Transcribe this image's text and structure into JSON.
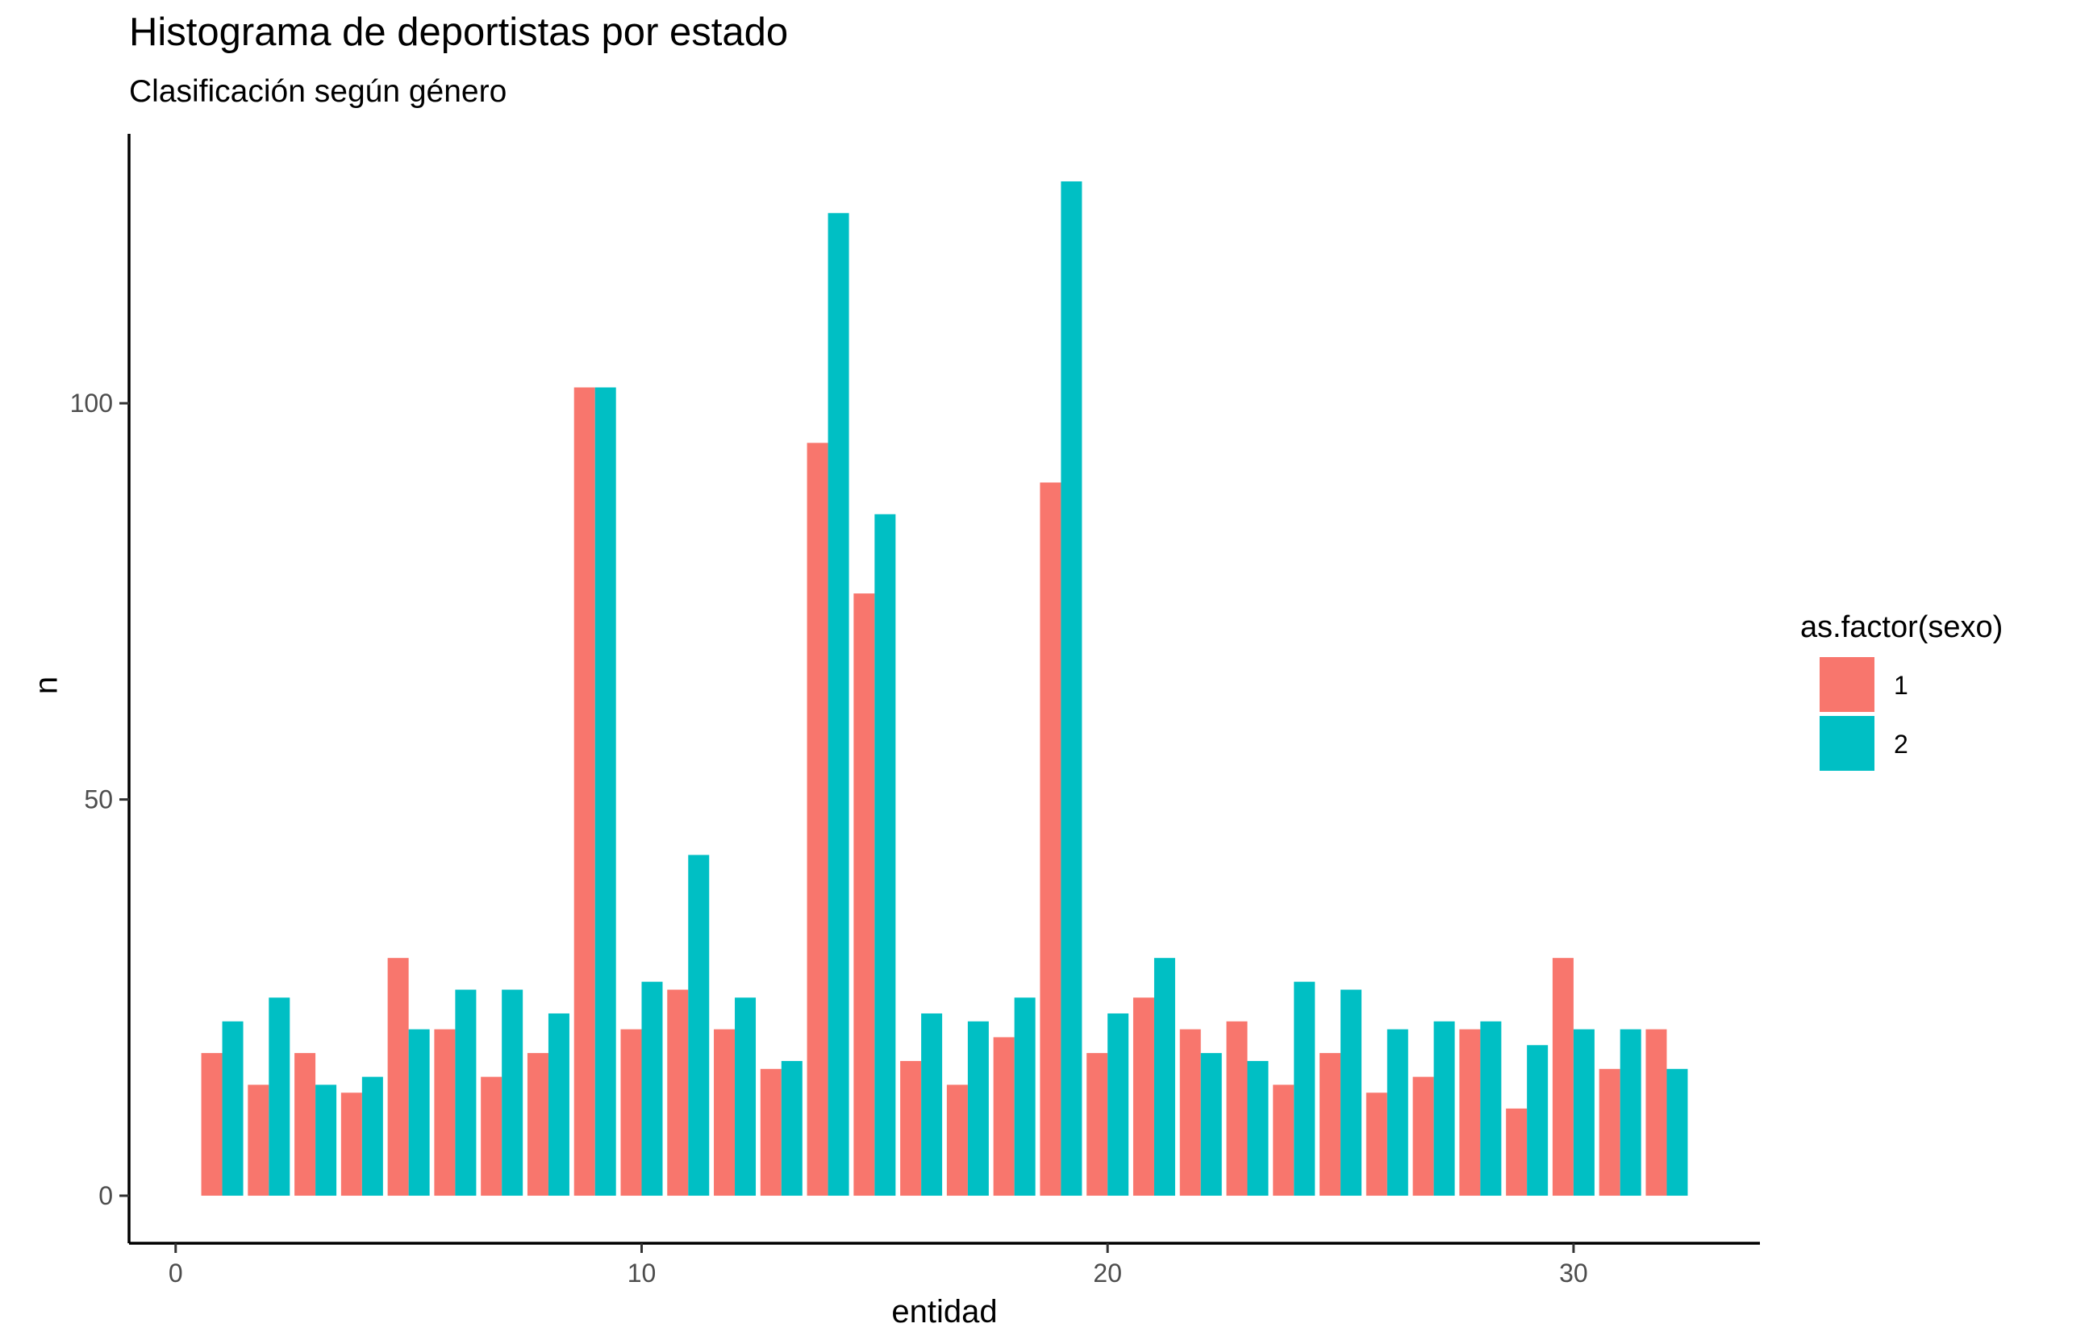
{
  "chart_data": {
    "type": "bar",
    "title": "Histograma de deportistas por estado",
    "subtitle": "Clasificación según género",
    "xlabel": "entidad",
    "ylabel": "n",
    "xlim": [
      -1,
      34
    ],
    "ylim": [
      -6,
      134
    ],
    "xticks": [
      0,
      10,
      20,
      30
    ],
    "yticks": [
      0,
      50,
      100
    ],
    "grid": false,
    "legend": {
      "title": "as.factor(sexo)",
      "position": "right"
    },
    "x": [
      1,
      2,
      3,
      4,
      5,
      6,
      7,
      8,
      9,
      10,
      11,
      12,
      13,
      14,
      15,
      16,
      17,
      18,
      19,
      20,
      21,
      22,
      23,
      24,
      25,
      26,
      27,
      28,
      29,
      30,
      31,
      32
    ],
    "series": [
      {
        "name": "1",
        "color": "#F8766D",
        "values": [
          18,
          14,
          18,
          13,
          30,
          21,
          15,
          18,
          102,
          21,
          26,
          21,
          16,
          95,
          76,
          17,
          14,
          20,
          90,
          18,
          25,
          21,
          22,
          14,
          18,
          13,
          15,
          21,
          11,
          30,
          16,
          21
        ]
      },
      {
        "name": "2",
        "color": "#00BFC4",
        "values": [
          22,
          25,
          14,
          15,
          21,
          26,
          26,
          23,
          102,
          27,
          43,
          25,
          17,
          124,
          86,
          23,
          22,
          25,
          128,
          23,
          30,
          18,
          17,
          27,
          26,
          21,
          22,
          22,
          19,
          21,
          21,
          16
        ]
      }
    ]
  }
}
